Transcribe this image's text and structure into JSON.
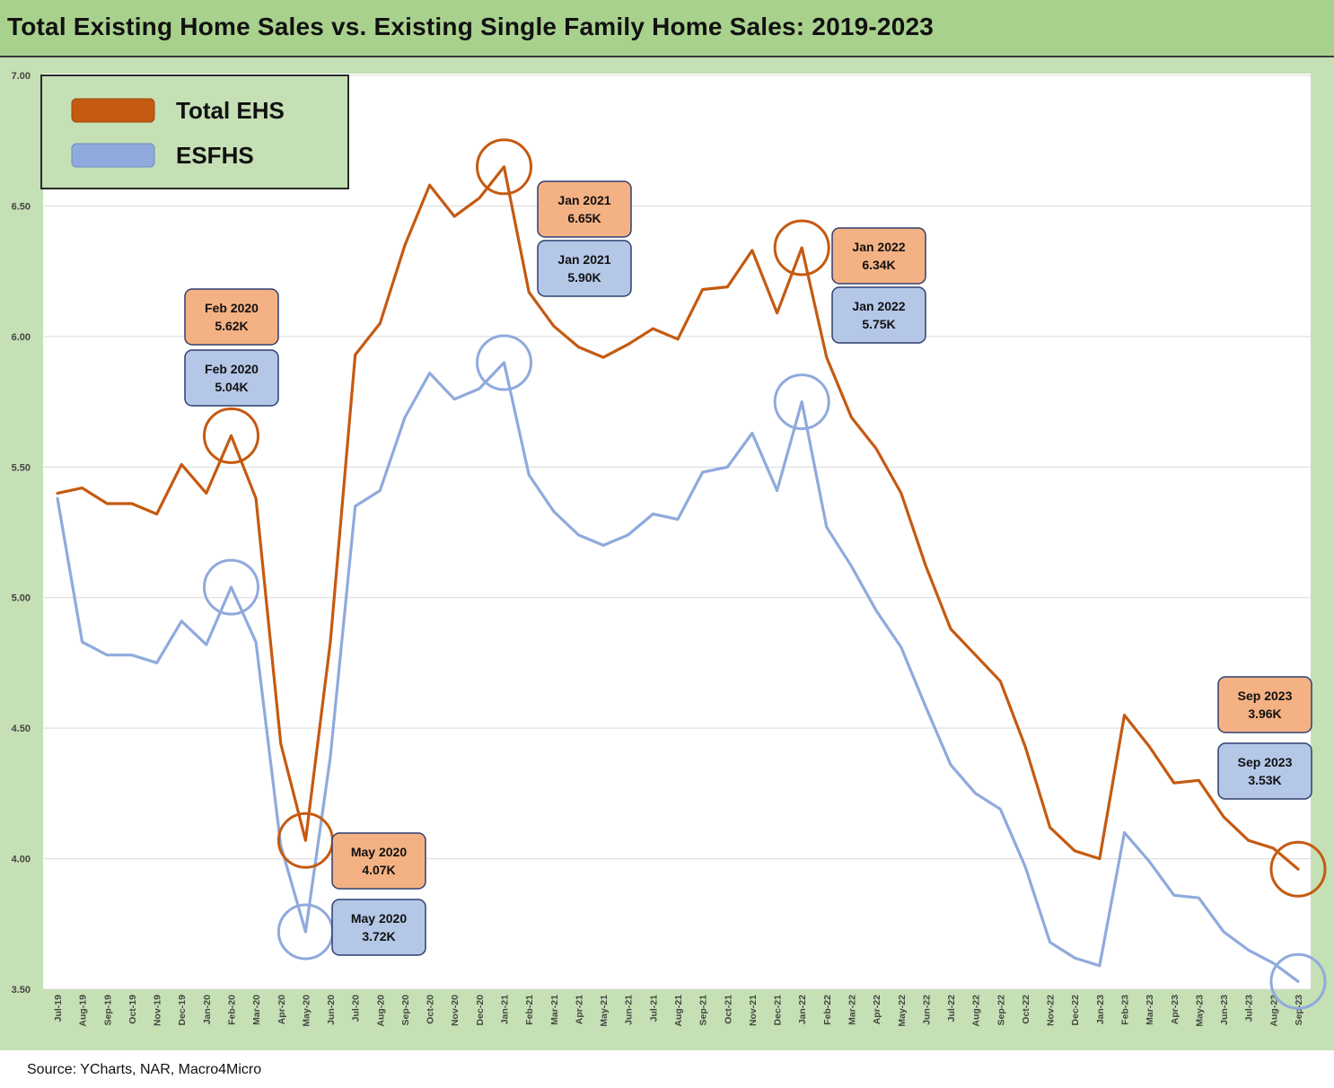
{
  "title": "Total Existing Home Sales vs. Existing Single Family Home Sales: 2019-2023",
  "source": "Source: YCharts, NAR, Macro4Micro",
  "colors": {
    "total_ehs": "#c55a11",
    "esfhs": "#8faadc",
    "title_bg": "#a9d18e",
    "chart_bg": "#c5e0b4",
    "orange_box": "#f4b183",
    "blue_box": "#b4c7e7",
    "box_border": "#2f3f6f"
  },
  "chart_data": {
    "type": "line",
    "grid": "horizontal",
    "legend_position": "top-left",
    "ylim": [
      3.5,
      7.0
    ],
    "yticks": [
      "3.50",
      "4.00",
      "4.50",
      "5.00",
      "5.50",
      "6.00",
      "6.50",
      "7.00"
    ],
    "categories": [
      "Jul-19",
      "Aug-19",
      "Sep-19",
      "Oct-19",
      "Nov-19",
      "Dec-19",
      "Jan-20",
      "Feb-20",
      "Mar-20",
      "Apr-20",
      "May-20",
      "Jun-20",
      "Jul-20",
      "Aug-20",
      "Sep-20",
      "Oct-20",
      "Nov-20",
      "Dec-20",
      "Jan-21",
      "Feb-21",
      "Mar-21",
      "Apr-21",
      "May-21",
      "Jun-21",
      "Jul-21",
      "Aug-21",
      "Sep-21",
      "Oct-21",
      "Nov-21",
      "Dec-21",
      "Jan-22",
      "Feb-22",
      "Mar-22",
      "Apr-22",
      "May-22",
      "Jun-22",
      "Jul-22",
      "Aug-22",
      "Sep-22",
      "Oct-22",
      "Nov-22",
      "Dec-22",
      "Jan-23",
      "Feb-23",
      "Mar-23",
      "Apr-23",
      "May-23",
      "Jun-23",
      "Jul-23",
      "Aug-23",
      "Sep-23"
    ],
    "series": [
      {
        "name": "Total EHS",
        "values": [
          5.4,
          5.42,
          5.36,
          5.36,
          5.32,
          5.51,
          5.4,
          5.62,
          5.38,
          4.44,
          4.07,
          4.83,
          5.93,
          6.05,
          6.35,
          6.58,
          6.46,
          6.53,
          6.65,
          6.17,
          6.04,
          5.96,
          5.92,
          5.97,
          6.03,
          5.99,
          6.18,
          6.19,
          6.33,
          6.09,
          6.34,
          5.92,
          5.69,
          5.57,
          5.4,
          5.12,
          4.88,
          4.78,
          4.68,
          4.43,
          4.12,
          4.03,
          4.0,
          4.55,
          4.43,
          4.29,
          4.3,
          4.16,
          4.07,
          4.04,
          3.96
        ]
      },
      {
        "name": "ESFHS",
        "values": [
          5.38,
          4.83,
          4.78,
          4.78,
          4.75,
          4.91,
          4.82,
          5.04,
          4.83,
          4.05,
          3.72,
          4.39,
          5.35,
          5.41,
          5.69,
          5.86,
          5.76,
          5.8,
          5.9,
          5.47,
          5.33,
          5.24,
          5.2,
          5.24,
          5.32,
          5.3,
          5.48,
          5.5,
          5.63,
          5.41,
          5.75,
          5.27,
          5.12,
          4.95,
          4.81,
          4.58,
          4.36,
          4.25,
          4.19,
          3.97,
          3.68,
          3.62,
          3.59,
          4.1,
          3.99,
          3.86,
          3.85,
          3.72,
          3.65,
          3.6,
          3.53
        ]
      }
    ],
    "annotations": [
      {
        "label": "Feb 2020",
        "total": "5.62K",
        "single": "5.04K",
        "index": 7
      },
      {
        "label": "May 2020",
        "total": "4.07K",
        "single": "3.72K",
        "index": 10
      },
      {
        "label": "Jan 2021",
        "total": "6.65K",
        "single": "5.90K",
        "index": 18
      },
      {
        "label": "Jan 2022",
        "total": "6.34K",
        "single": "5.75K",
        "index": 30
      },
      {
        "label": "Sep 2023",
        "total": "3.96K",
        "single": "3.53K",
        "index": 50
      }
    ]
  }
}
